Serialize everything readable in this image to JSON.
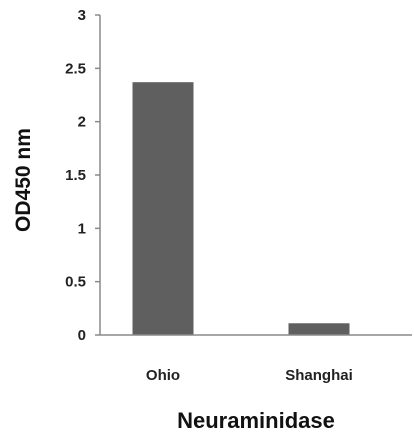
{
  "chart_data": {
    "type": "bar",
    "categories": [
      "Ohio",
      "Shanghai"
    ],
    "values": [
      2.37,
      0.11
    ],
    "xlabel": "Neuraminidase",
    "ylabel": "OD450 nm",
    "ylim": [
      0,
      3
    ],
    "yticks": [
      "0",
      "0.5",
      "1",
      "1.5",
      "2",
      "2.5",
      "3"
    ],
    "grid": false,
    "bar_color": "#5f5f5f",
    "axis_color": "#8a8a8a"
  }
}
